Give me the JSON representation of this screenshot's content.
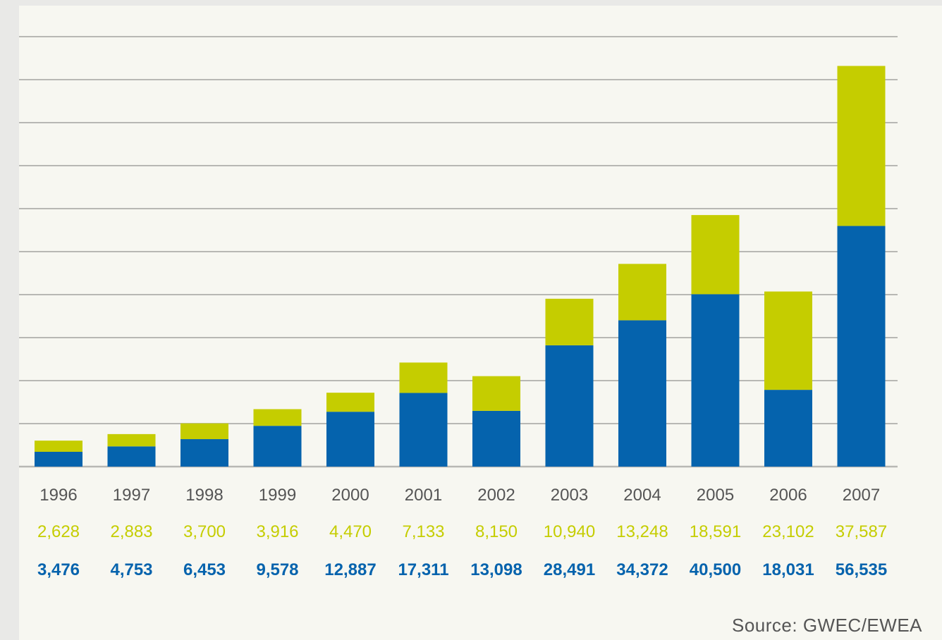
{
  "source": "Source: GWEC/EWEA",
  "colors": {
    "series_top": "#c5cd00",
    "series_bottom": "#0563ad",
    "grid": "#b8b8b4",
    "year_text": "#555555",
    "panel": "#f7f7f1"
  },
  "chart_data": {
    "type": "bar",
    "stacked": true,
    "grid": true,
    "ylim": [
      0,
      101000
    ],
    "categories": [
      "1996",
      "1997",
      "1998",
      "1999",
      "2000",
      "2001",
      "2002",
      "2003",
      "2004",
      "2005",
      "2006",
      "2007"
    ],
    "series": [
      {
        "values": [
          3476,
          4753,
          6453,
          9578,
          12887,
          17311,
          13098,
          28491,
          34372,
          40500,
          18031,
          56535
        ],
        "labels": [
          "3,476",
          "4,753",
          "6,453",
          "9,578",
          "12,887",
          "17,311",
          "13,098",
          "28,491",
          "34,372",
          "40,500",
          "18,031",
          "56,535"
        ],
        "color": "#0563ad"
      },
      {
        "values": [
          2628,
          2883,
          3700,
          3916,
          4470,
          7133,
          8150,
          10940,
          13248,
          18591,
          23102,
          37587
        ],
        "labels": [
          "2,628",
          "2,883",
          "3,700",
          "3,916",
          "4,470",
          "7,133",
          "8,150",
          "10,940",
          "13,248",
          "18,591",
          "23,102",
          "37,587"
        ],
        "color": "#c5cd00"
      }
    ]
  }
}
